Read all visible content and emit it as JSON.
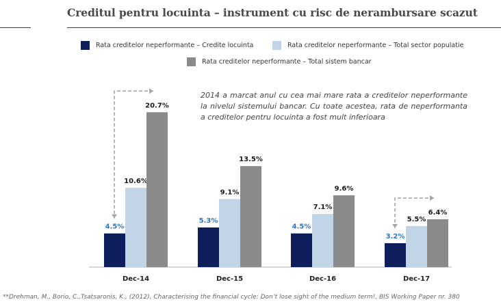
{
  "title": "Creditul pentru locuinta – instrument cu risc de nerambursare scazut",
  "note": "2014 a marcat anul cu cea mai mare rata a creditelor neperformante la nivelul sistemului bancar. Cu toate acestea, rata de neperformanta a creditelor pentru locuinta a fost mult inferioara",
  "footnote": "**Drehman, M., Borio, C.,Tsatsaronis, K., (2012), Characterising the financial cycle: Don’t lose sight of the medium term!, BIS Working Paper nr. 380",
  "colors": {
    "series1": "#0e1e5b",
    "series2": "#c2d5e6",
    "series3": "#8a8a8a",
    "series1_label": "#2f75c0",
    "arrow": "#a6a6a6"
  },
  "chart_data": {
    "type": "bar",
    "categories": [
      "Dec-14",
      "Dec-15",
      "Dec-16",
      "Dec-17"
    ],
    "series": [
      {
        "name": "Rata creditelor neperformante – Credite locuinta",
        "values": [
          4.5,
          5.3,
          4.5,
          3.2
        ],
        "labels": [
          "4.5%",
          "5.3%",
          "4.5%",
          "3.2%"
        ]
      },
      {
        "name": "Rata creditelor neperformante – Total sector populatie",
        "values": [
          10.6,
          9.1,
          7.1,
          5.5
        ],
        "labels": [
          "10.6%",
          "9.1%",
          "7.1%",
          "5.5%"
        ]
      },
      {
        "name": "Rata creditelor neperformante – Total sistem bancar",
        "values": [
          20.7,
          13.5,
          9.6,
          6.4
        ],
        "labels": [
          "20.7%",
          "13.5%",
          "9.6%",
          "6.4%"
        ]
      }
    ],
    "ylim": [
      0,
      22
    ],
    "grid": false,
    "legend_position": "top"
  }
}
